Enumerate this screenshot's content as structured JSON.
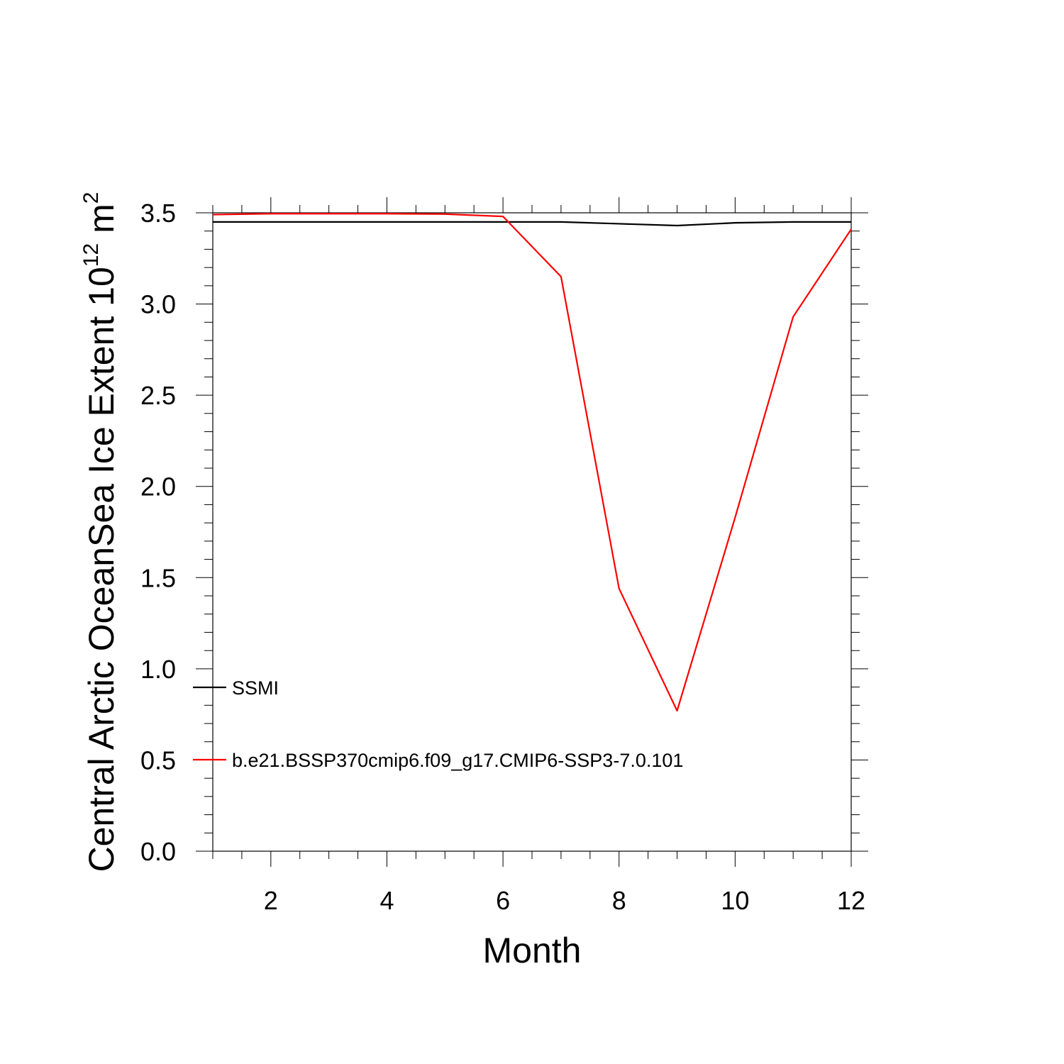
{
  "chart_data": {
    "type": "line",
    "xlabel": "Month",
    "ylabel_main": "Central Arctic OceanSea Ice Extent 10",
    "ylabel_exp": "12",
    "ylabel_unit": "m",
    "ylabel_unit_exp": "2",
    "xlim": [
      1,
      12
    ],
    "ylim": [
      0,
      3.5
    ],
    "xticks": [
      2,
      4,
      6,
      8,
      10,
      12
    ],
    "xtick_labels": [
      "2",
      "4",
      "6",
      "8",
      "10",
      "12"
    ],
    "yticks": [
      0,
      0.5,
      1,
      1.5,
      2,
      2.5,
      3,
      3.5
    ],
    "ytick_labels": [
      "0.0",
      "0.5",
      "1.0",
      "1.5",
      "2.0",
      "2.5",
      "3.0",
      "3.5"
    ],
    "x": [
      1,
      2,
      3,
      4,
      5,
      6,
      7,
      8,
      9,
      10,
      11,
      12
    ],
    "series": [
      {
        "name": "SSMI",
        "color": "#000000",
        "values": [
          3.45,
          3.45,
          3.45,
          3.45,
          3.45,
          3.45,
          3.45,
          3.44,
          3.43,
          3.445,
          3.45,
          3.45
        ]
      },
      {
        "name": "b.e21.BSSP370cmip6.f09_g17.CMIP6-SSP3-7.0.101",
        "color": "#ff0000",
        "values": [
          3.49,
          3.495,
          3.495,
          3.495,
          3.493,
          3.48,
          3.15,
          1.44,
          0.77,
          1.83,
          2.93,
          3.41
        ]
      }
    ],
    "legend_placement": "lower-left inside",
    "grid": false
  }
}
